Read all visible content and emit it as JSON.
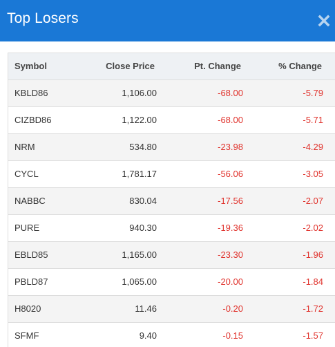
{
  "modal": {
    "title": "Top Losers",
    "close_icon": "close-icon"
  },
  "colors": {
    "header_bg": "#1a78d6",
    "negative": "#e0322c"
  },
  "table": {
    "columns": [
      "Symbol",
      "Close Price",
      "Pt. Change",
      "% Change"
    ],
    "rows": [
      {
        "symbol": "KBLD86",
        "close": "1,106.00",
        "pt_change": "-68.00",
        "pct_change": "-5.79"
      },
      {
        "symbol": "CIZBD86",
        "close": "1,122.00",
        "pt_change": "-68.00",
        "pct_change": "-5.71"
      },
      {
        "symbol": "NRM",
        "close": "534.80",
        "pt_change": "-23.98",
        "pct_change": "-4.29"
      },
      {
        "symbol": "CYCL",
        "close": "1,781.17",
        "pt_change": "-56.06",
        "pct_change": "-3.05"
      },
      {
        "symbol": "NABBC",
        "close": "830.04",
        "pt_change": "-17.56",
        "pct_change": "-2.07"
      },
      {
        "symbol": "PURE",
        "close": "940.30",
        "pt_change": "-19.36",
        "pct_change": "-2.02"
      },
      {
        "symbol": "EBLD85",
        "close": "1,165.00",
        "pt_change": "-23.30",
        "pct_change": "-1.96"
      },
      {
        "symbol": "PBLD87",
        "close": "1,065.00",
        "pt_change": "-20.00",
        "pct_change": "-1.84"
      },
      {
        "symbol": "H8020",
        "close": "11.46",
        "pt_change": "-0.20",
        "pct_change": "-1.72"
      },
      {
        "symbol": "SFMF",
        "close": "9.40",
        "pt_change": "-0.15",
        "pct_change": "-1.57"
      }
    ]
  }
}
